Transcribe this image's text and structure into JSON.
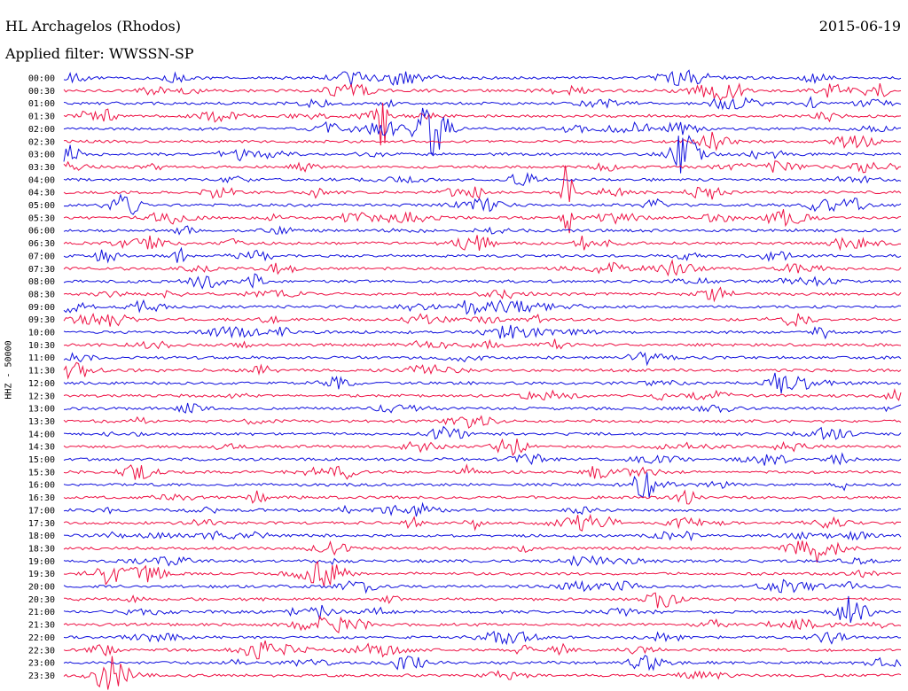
{
  "header": {
    "station": "HL Archagelos (Rhodos)",
    "date": "2015-06-19",
    "filter_label": "Applied filter:",
    "filter_value": "WWSSN-SP"
  },
  "chart_data": {
    "type": "line",
    "subtype": "helicorder",
    "channel_label": "HHZ - 50000",
    "time_labels": [
      "00:00",
      "00:30",
      "01:00",
      "01:30",
      "02:00",
      "02:30",
      "03:00",
      "03:30",
      "04:00",
      "04:30",
      "05:00",
      "05:30",
      "06:00",
      "06:30",
      "07:00",
      "07:30",
      "08:00",
      "08:30",
      "09:00",
      "09:30",
      "10:00",
      "10:30",
      "11:00",
      "11:30",
      "12:00",
      "12:30",
      "13:00",
      "13:30",
      "14:00",
      "14:30",
      "15:00",
      "15:30",
      "16:00",
      "16:30",
      "17:00",
      "17:30",
      "18:00",
      "18:30",
      "19:00",
      "19:30",
      "20:00",
      "20:30",
      "21:00",
      "21:30",
      "22:00",
      "22:30",
      "23:00",
      "23:30"
    ],
    "trace_colors": [
      "#1010dd",
      "#ee1144"
    ],
    "grid": false,
    "notable_events": [
      {
        "row": "01:30",
        "pos": 0.38,
        "amp": 1.4,
        "type": "spike"
      },
      {
        "row": "02:00",
        "pos": 0.44,
        "amp": 1.0,
        "type": "burst"
      },
      {
        "row": "03:00",
        "pos": 0.74,
        "amp": 0.8,
        "type": "burst"
      },
      {
        "row": "04:30",
        "pos": 0.6,
        "amp": 1.5,
        "type": "spike"
      },
      {
        "row": "05:00",
        "pos": 0.07,
        "amp": 0.5,
        "type": "burst"
      },
      {
        "row": "05:30",
        "pos": 0.6,
        "amp": 0.8,
        "type": "spike"
      },
      {
        "row": "21:00",
        "pos": 0.94,
        "amp": 0.6,
        "type": "burst"
      },
      {
        "row": "23:00",
        "pos": 0.41,
        "amp": 0.4,
        "type": "burst"
      }
    ]
  }
}
